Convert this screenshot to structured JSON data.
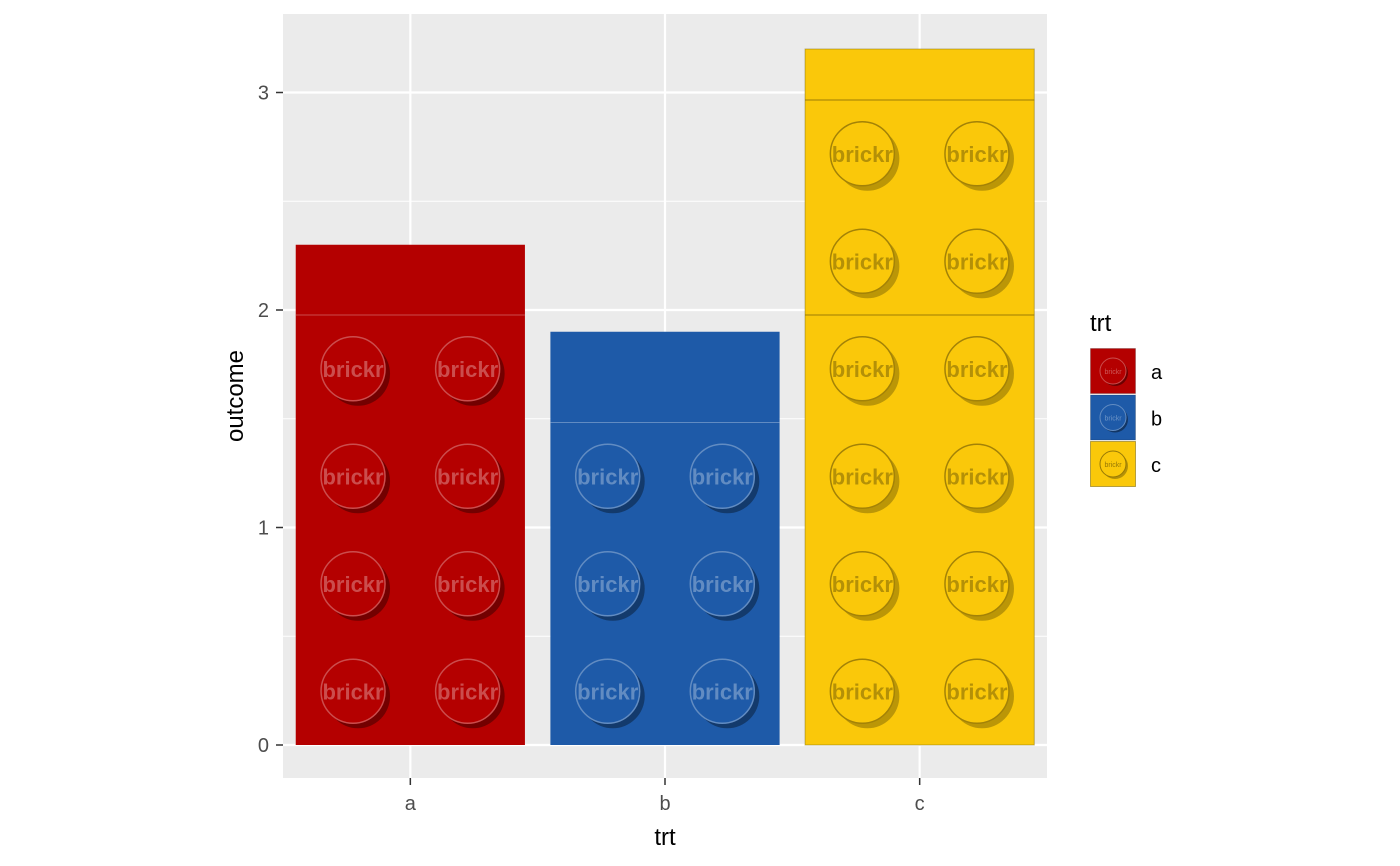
{
  "chart_data": {
    "type": "bar",
    "categories": [
      "a",
      "b",
      "c"
    ],
    "values": [
      2.3,
      1.9,
      3.2
    ],
    "xlabel": "trt",
    "ylabel": "outcome",
    "ylim": [
      -0.16,
      3.36
    ],
    "yticks": [
      0,
      1,
      2,
      3
    ],
    "grid": true,
    "panel_background": "#EBEBEB",
    "grid_color": "#FFFFFF",
    "legend": {
      "title": "trt",
      "position": "right",
      "entries": [
        {
          "label": "a",
          "color": "#B40000"
        },
        {
          "label": "b",
          "color": "#1E5AA8"
        },
        {
          "label": "c",
          "color": "#FAC80A"
        }
      ]
    },
    "stud_text": "brickr",
    "brick_style": "lego bricks with studs"
  }
}
